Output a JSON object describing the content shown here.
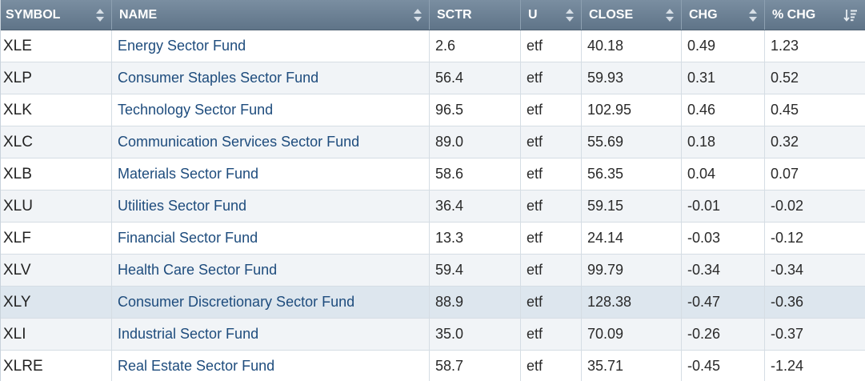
{
  "table": {
    "columns": [
      {
        "key": "symbol",
        "label": "SYMBOL",
        "sort": "both"
      },
      {
        "key": "name",
        "label": "NAME",
        "sort": "both"
      },
      {
        "key": "sctr",
        "label": "SCTR",
        "sort": "none"
      },
      {
        "key": "u",
        "label": "U",
        "sort": "both"
      },
      {
        "key": "close",
        "label": "CLOSE",
        "sort": "both"
      },
      {
        "key": "chg",
        "label": "CHG",
        "sort": "both"
      },
      {
        "key": "pct_chg",
        "label": "% CHG",
        "sort": "desc"
      }
    ],
    "rows": [
      {
        "symbol": "XLE",
        "name": "Energy Sector Fund",
        "sctr": "2.6",
        "u": "etf",
        "close": "40.18",
        "chg": "0.49",
        "pct_chg": "1.23"
      },
      {
        "symbol": "XLP",
        "name": "Consumer Staples Sector Fund",
        "sctr": "56.4",
        "u": "etf",
        "close": "59.93",
        "chg": "0.31",
        "pct_chg": "0.52"
      },
      {
        "symbol": "XLK",
        "name": "Technology Sector Fund",
        "sctr": "96.5",
        "u": "etf",
        "close": "102.95",
        "chg": "0.46",
        "pct_chg": "0.45"
      },
      {
        "symbol": "XLC",
        "name": "Communication Services Sector Fund",
        "sctr": "89.0",
        "u": "etf",
        "close": "55.69",
        "chg": "0.18",
        "pct_chg": "0.32"
      },
      {
        "symbol": "XLB",
        "name": "Materials Sector Fund",
        "sctr": "58.6",
        "u": "etf",
        "close": "56.35",
        "chg": "0.04",
        "pct_chg": "0.07"
      },
      {
        "symbol": "XLU",
        "name": "Utilities Sector Fund",
        "sctr": "36.4",
        "u": "etf",
        "close": "59.15",
        "chg": "-0.01",
        "pct_chg": "-0.02"
      },
      {
        "symbol": "XLF",
        "name": "Financial Sector Fund",
        "sctr": "13.3",
        "u": "etf",
        "close": "24.14",
        "chg": "-0.03",
        "pct_chg": "-0.12"
      },
      {
        "symbol": "XLV",
        "name": "Health Care Sector Fund",
        "sctr": "59.4",
        "u": "etf",
        "close": "99.79",
        "chg": "-0.34",
        "pct_chg": "-0.34"
      },
      {
        "symbol": "XLY",
        "name": "Consumer Discretionary Sector Fund",
        "sctr": "88.9",
        "u": "etf",
        "close": "128.38",
        "chg": "-0.47",
        "pct_chg": "-0.36",
        "highlighted": true
      },
      {
        "symbol": "XLI",
        "name": "Industrial Sector Fund",
        "sctr": "35.0",
        "u": "etf",
        "close": "70.09",
        "chg": "-0.26",
        "pct_chg": "-0.37"
      },
      {
        "symbol": "XLRE",
        "name": "Real Estate Sector Fund",
        "sctr": "58.7",
        "u": "etf",
        "close": "35.71",
        "chg": "-0.45",
        "pct_chg": "-1.24"
      }
    ]
  },
  "colors": {
    "header_bg": "#6b8094",
    "name_link": "#1e4c7d",
    "row_highlight": "#dde6ee"
  }
}
